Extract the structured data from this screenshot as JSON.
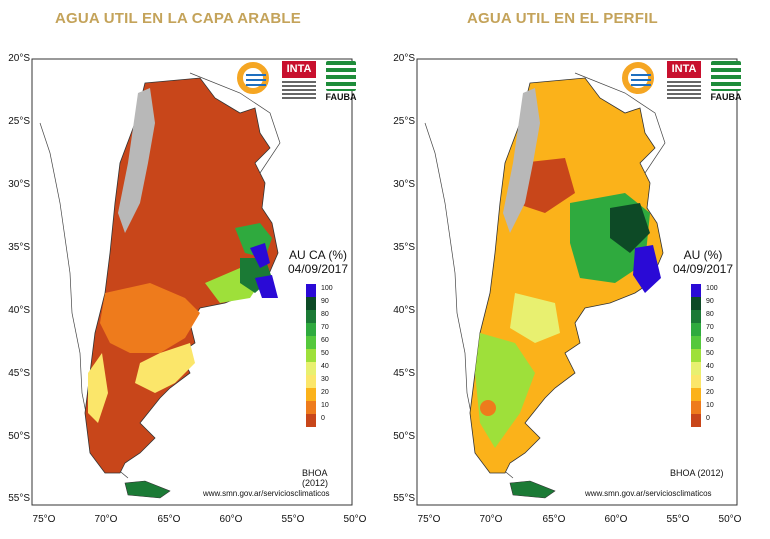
{
  "panels": [
    {
      "title": "AGUA UTIL EN LA CAPA ARABLE",
      "map_label": [
        "AU CA (%)",
        "04/09/2017"
      ],
      "legend": [
        "100",
        "90",
        "80",
        "70",
        "60",
        "50",
        "40",
        "30",
        "20",
        "10",
        "0"
      ],
      "footer_model": "BHOA (2012)",
      "footer_url": "www.smn.gov.ar/serviciosclimaticos"
    },
    {
      "title": "AGUA UTIL EN EL PERFIL",
      "map_label": [
        "AU (%)",
        "04/09/2017"
      ],
      "legend": [
        "100",
        "90",
        "80",
        "70",
        "60",
        "50",
        "40",
        "30",
        "20",
        "10",
        "0"
      ],
      "footer_model": "BHOA (2012)",
      "footer_url": "www.smn.gov.ar/serviciosclimaticos"
    }
  ],
  "lat_ticks": [
    "20°S",
    "25°S",
    "30°S",
    "35°S",
    "40°S",
    "45°S",
    "50°S",
    "55°S"
  ],
  "lon_ticks": [
    "75°O",
    "70°O",
    "65°O",
    "60°O",
    "55°O",
    "50°O"
  ],
  "legend_colors": [
    "#2a0ad6",
    "#0d4a26",
    "#1b7a35",
    "#2faa3e",
    "#55c83c",
    "#9ee03a",
    "#e8f070",
    "#fbe66a",
    "#fbb21a",
    "#ee7b1c",
    "#c8461a"
  ],
  "logo_text": {
    "inta": "INTA",
    "fauba": "FAUBA"
  }
}
